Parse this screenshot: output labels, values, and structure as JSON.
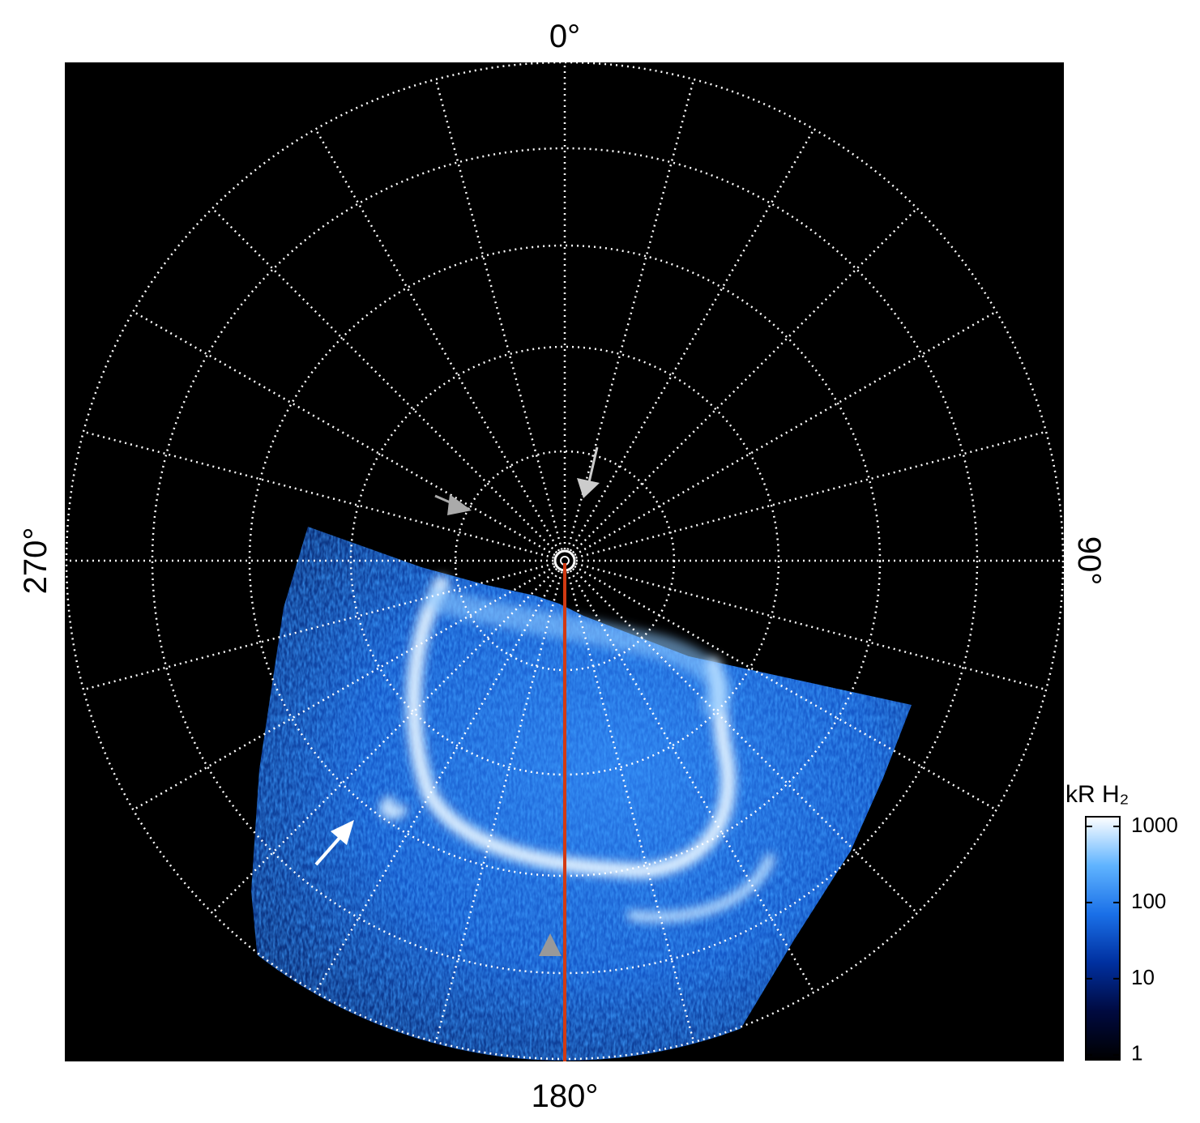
{
  "chart_data": {
    "type": "polar_image",
    "angle_labels": {
      "top": "0°",
      "right": "90°",
      "bottom": "180°",
      "left": "270°"
    },
    "colorbar": {
      "title": "kR H₂",
      "log": true,
      "lim": [
        0.86,
        1340
      ],
      "ticks": [
        1,
        10,
        100,
        1000
      ],
      "colors": [
        "#000000",
        "#000a40",
        "#0030a0",
        "#1a70e8",
        "#60b4ff",
        "#ffffff"
      ]
    }
  }
}
